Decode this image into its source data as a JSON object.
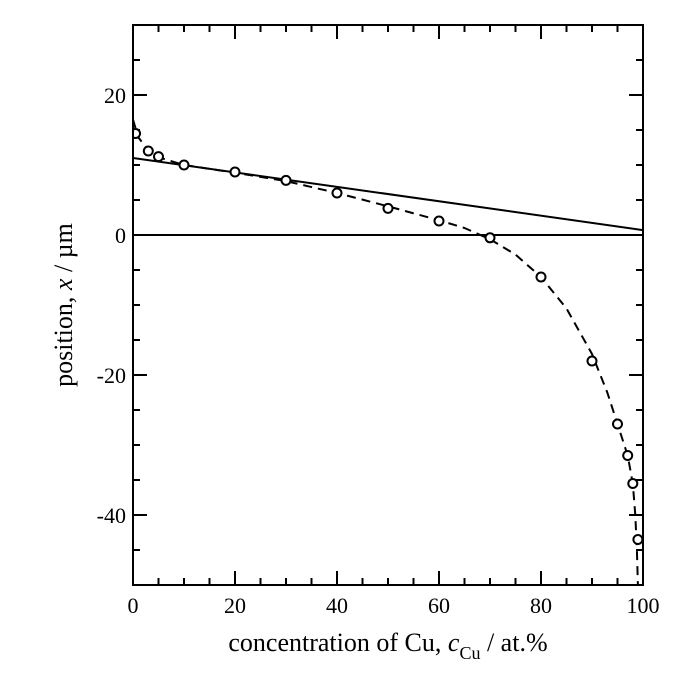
{
  "chart_data": {
    "type": "scatter",
    "xlabel": {
      "prefix": "concentration of Cu, ",
      "symbol": "c",
      "subscript": "Cu",
      "suffix": " / at.%"
    },
    "ylabel": {
      "prefix": "position, ",
      "symbol": "x",
      "suffix": " / µm"
    },
    "xlim": [
      0,
      100
    ],
    "ylim": [
      -50,
      30
    ],
    "x_ticks": [
      0,
      20,
      40,
      60,
      80,
      100
    ],
    "y_ticks": [
      -40,
      -20,
      0,
      20
    ],
    "x_minor_step": 5,
    "y_minor_step": 5,
    "grid": false,
    "series": [
      {
        "kind": "markers",
        "marker": "open-circle",
        "points": [
          [
            0.5,
            14.5
          ],
          [
            3,
            12.0
          ],
          [
            5,
            11.2
          ],
          [
            10,
            10.0
          ],
          [
            20,
            9.0
          ],
          [
            30,
            7.8
          ],
          [
            40,
            6.0
          ],
          [
            50,
            3.8
          ],
          [
            60,
            2.0
          ],
          [
            70,
            -0.4
          ],
          [
            80,
            -6.0
          ],
          [
            90,
            -18.0
          ],
          [
            95,
            -27.0
          ],
          [
            97,
            -31.5
          ],
          [
            98,
            -35.5
          ],
          [
            99,
            -43.5
          ]
        ]
      },
      {
        "kind": "dashed-fit",
        "points": [
          [
            0,
            16.5
          ],
          [
            1,
            14.0
          ],
          [
            3,
            12.1
          ],
          [
            5,
            11.1
          ],
          [
            10,
            10.0
          ],
          [
            20,
            8.9
          ],
          [
            30,
            7.7
          ],
          [
            40,
            6.0
          ],
          [
            50,
            4.1
          ],
          [
            60,
            2.1
          ],
          [
            65,
            1.0
          ],
          [
            70,
            -0.6
          ],
          [
            75,
            -2.8
          ],
          [
            80,
            -6.0
          ],
          [
            85,
            -10.5
          ],
          [
            90,
            -17.0
          ],
          [
            93,
            -22.5
          ],
          [
            95,
            -27.0
          ],
          [
            97,
            -31.5
          ],
          [
            98,
            -35.5
          ],
          [
            98.5,
            -40.0
          ],
          [
            98.8,
            -45.0
          ],
          [
            99,
            -50.0
          ]
        ]
      },
      {
        "kind": "solid-line",
        "points": [
          [
            0,
            11.0
          ],
          [
            100,
            0.7
          ]
        ]
      },
      {
        "kind": "zero-line",
        "points": [
          [
            0,
            0
          ],
          [
            100,
            0
          ]
        ]
      }
    ]
  }
}
